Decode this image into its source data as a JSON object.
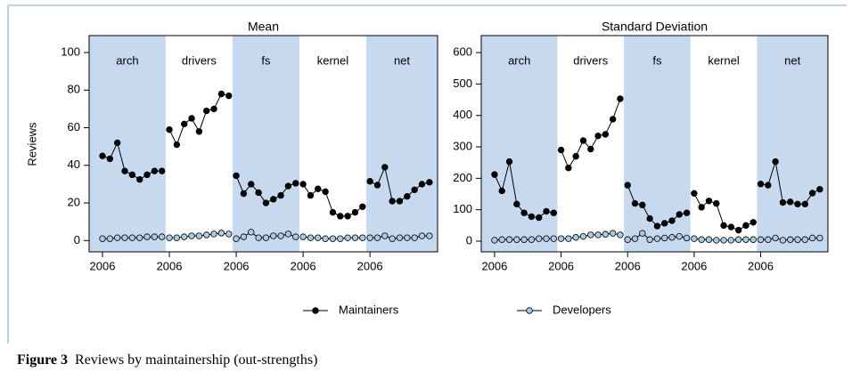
{
  "chart_data": [
    {
      "type": "line",
      "title": "Mean",
      "y_label": "Reviews",
      "groups": [
        "arch",
        "drivers",
        "fs",
        "kernel",
        "net"
      ],
      "categories": [
        "2006",
        null,
        null,
        null,
        null,
        null,
        null,
        null,
        null,
        "2006",
        null,
        null,
        null,
        null,
        null,
        null,
        null,
        null,
        "2006",
        null,
        null,
        null,
        null,
        null,
        null,
        null,
        null,
        "2006",
        null,
        null,
        null,
        null,
        null,
        null,
        null,
        null,
        "2006",
        null,
        null,
        null,
        null,
        null,
        null,
        null,
        null
      ],
      "series": [
        {
          "values": [
            45,
            43.5,
            52,
            37,
            35,
            32.5,
            35,
            37,
            37,
            59,
            51,
            62,
            65,
            58,
            69,
            70,
            78,
            77,
            34.5,
            25,
            30,
            25.5,
            20,
            22,
            24,
            29,
            30.5,
            30,
            24,
            27.5,
            26,
            15,
            13,
            13,
            15,
            18,
            31.5,
            29.5,
            39,
            21,
            21,
            23.5,
            27,
            30,
            31
          ]
        },
        {
          "values": [
            1,
            1,
            1.5,
            1.5,
            1.5,
            1.5,
            2,
            2,
            2,
            1.5,
            1.5,
            2,
            2.5,
            2.5,
            3,
            3.5,
            4,
            3.5,
            1,
            2,
            4.5,
            1.5,
            1.5,
            2.5,
            2.5,
            3.5,
            2,
            2,
            1.5,
            1.5,
            1,
            1,
            1,
            1.5,
            1.5,
            1.5,
            1.5,
            1.5,
            2.5,
            1,
            1.5,
            1.5,
            1.5,
            2.5,
            2.5
          ]
        }
      ],
      "ylim": [
        -6,
        109
      ],
      "yticks": [
        0,
        20,
        40,
        60,
        80,
        100
      ]
    },
    {
      "type": "line",
      "title": "Standard Deviation",
      "groups": [
        "arch",
        "drivers",
        "fs",
        "kernel",
        "net"
      ],
      "categories": [
        "2006",
        null,
        null,
        null,
        null,
        null,
        null,
        null,
        null,
        "2006",
        null,
        null,
        null,
        null,
        null,
        null,
        null,
        null,
        "2006",
        null,
        null,
        null,
        null,
        null,
        null,
        null,
        null,
        "2006",
        null,
        null,
        null,
        null,
        null,
        null,
        null,
        null,
        "2006",
        null,
        null,
        null,
        null,
        null,
        null,
        null,
        null
      ],
      "series": [
        {
          "values": [
            212,
            160,
            253,
            118,
            90,
            78,
            75,
            95,
            90,
            290,
            233,
            270,
            320,
            293,
            335,
            340,
            388,
            453,
            178,
            120,
            115,
            72,
            48,
            57,
            65,
            85,
            90,
            152,
            108,
            128,
            120,
            50,
            45,
            35,
            50,
            60,
            182,
            178,
            253,
            123,
            125,
            118,
            118,
            153,
            165
          ]
        },
        {
          "values": [
            3,
            5,
            5,
            5,
            5,
            5,
            8,
            8,
            8,
            8,
            8,
            12,
            15,
            20,
            20,
            22,
            25,
            20,
            5,
            8,
            25,
            5,
            8,
            10,
            12,
            15,
            10,
            8,
            5,
            5,
            3,
            3,
            3,
            5,
            5,
            5,
            5,
            5,
            10,
            3,
            5,
            5,
            5,
            10,
            10
          ]
        }
      ],
      "ylim": [
        -34,
        654
      ],
      "yticks": [
        0,
        100,
        200,
        300,
        400,
        500,
        600
      ]
    }
  ],
  "band_color": "#c6d9ee",
  "legend": [
    {
      "name": "Maintainers",
      "color": "#000000"
    },
    {
      "name": "Developers",
      "color": "#a8cce4"
    }
  ],
  "caption": {
    "label": "Figure 3",
    "text": "Reviews by maintainership (out-strengths)"
  }
}
